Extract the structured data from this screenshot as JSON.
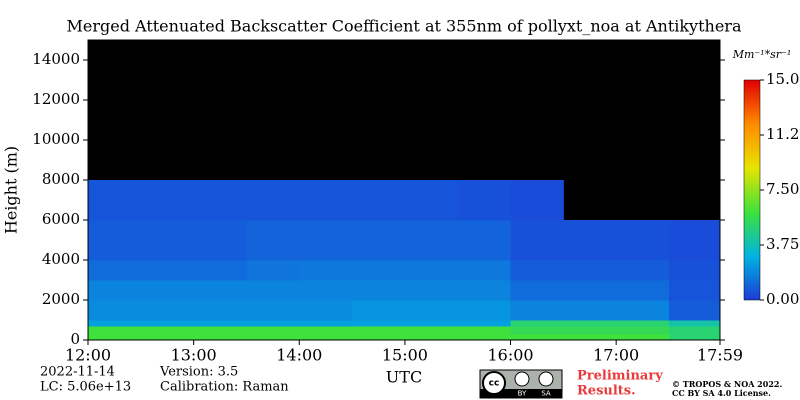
{
  "chart_data": {
    "type": "heatmap",
    "title": "Merged Attenuated Backscatter Coefficient at 355nm of pollyxt_noa at Antikythera",
    "ylabel": "Height (m)",
    "xlabel": "UTC",
    "xlim": [
      12,
      17.983
    ],
    "ylim": [
      0,
      15000
    ],
    "xticks": [
      {
        "value": 12,
        "label": "12:00"
      },
      {
        "value": 13,
        "label": "13:00"
      },
      {
        "value": 14,
        "label": "14:00"
      },
      {
        "value": 15,
        "label": "15:00"
      },
      {
        "value": 16,
        "label": "16:00"
      },
      {
        "value": 17,
        "label": "17:00"
      },
      {
        "value": 17.983,
        "label": "17:59"
      }
    ],
    "yticks": [
      0,
      2000,
      4000,
      6000,
      8000,
      10000,
      12000,
      14000
    ],
    "x_edges": [
      12,
      12.5,
      13,
      13.5,
      14,
      14.5,
      15,
      15.5,
      16,
      16.5,
      17,
      17.5,
      17.983
    ],
    "y_edges": [
      0,
      300,
      700,
      1000,
      2000,
      3000,
      4000,
      6000,
      8000,
      10000,
      12000,
      15000
    ],
    "z": [
      [
        6,
        6,
        6,
        6,
        6,
        6,
        6,
        6,
        6,
        6,
        6,
        5
      ],
      [
        6,
        6,
        6,
        6,
        6,
        6,
        6,
        6,
        5.5,
        5.5,
        5.5,
        5
      ],
      [
        2.5,
        2.5,
        2.5,
        2.5,
        2.5,
        2.5,
        2.5,
        2.5,
        5,
        5,
        5,
        4
      ],
      [
        2,
        2,
        2,
        2,
        2,
        2.2,
        2.2,
        2.2,
        1.8,
        1.8,
        1.8,
        0.8
      ],
      [
        1.8,
        1.8,
        1.8,
        1.8,
        1.8,
        1.8,
        1.8,
        1.8,
        1.2,
        1.2,
        1.2,
        0.6
      ],
      [
        1.2,
        1.2,
        1.2,
        1.4,
        1.5,
        1.5,
        1.5,
        1.5,
        0.8,
        0.8,
        0.8,
        0.5
      ],
      [
        0.8,
        0.8,
        0.8,
        1,
        1,
        1,
        1,
        1,
        0.5,
        0.5,
        0.5,
        0.4
      ],
      [
        0.6,
        0.6,
        0.6,
        0.6,
        0.6,
        0.6,
        0.6,
        0.5,
        0.4,
        null,
        null,
        null
      ],
      [
        null,
        null,
        null,
        null,
        null,
        null,
        null,
        null,
        null,
        null,
        null,
        null
      ],
      [
        null,
        null,
        null,
        null,
        null,
        null,
        null,
        null,
        null,
        null,
        null,
        null
      ],
      [
        null,
        null,
        null,
        null,
        null,
        null,
        null,
        null,
        null,
        null,
        null,
        null
      ]
    ],
    "colormap": [
      "#1c3cd8",
      "#00b4e0",
      "#3ee23a",
      "#e8e400",
      "#ff8a00",
      "#e00000"
    ],
    "nodata_color": "#000000",
    "clim": [
      0,
      15
    ],
    "cticks": [
      {
        "value": 0,
        "label": "0.00"
      },
      {
        "value": 3.75,
        "label": "3.75"
      },
      {
        "value": 7.5,
        "label": "7.50"
      },
      {
        "value": 11.25,
        "label": "11.25"
      },
      {
        "value": 15,
        "label": "15.00"
      }
    ],
    "colorbar_label": "Mm⁻¹*sr⁻¹"
  },
  "footer": {
    "date": "2022-11-14",
    "lc": "LC: 5.06e+13",
    "version": "Version: 3.5",
    "calibration": "Calibration: Raman",
    "preliminary": [
      "Preliminary",
      "Results."
    ],
    "license_badge": [
      "cc",
      "BY",
      "SA"
    ],
    "copyright": [
      "© TROPOS & NOA 2022.",
      "CC BY SA 4.0 License."
    ]
  }
}
